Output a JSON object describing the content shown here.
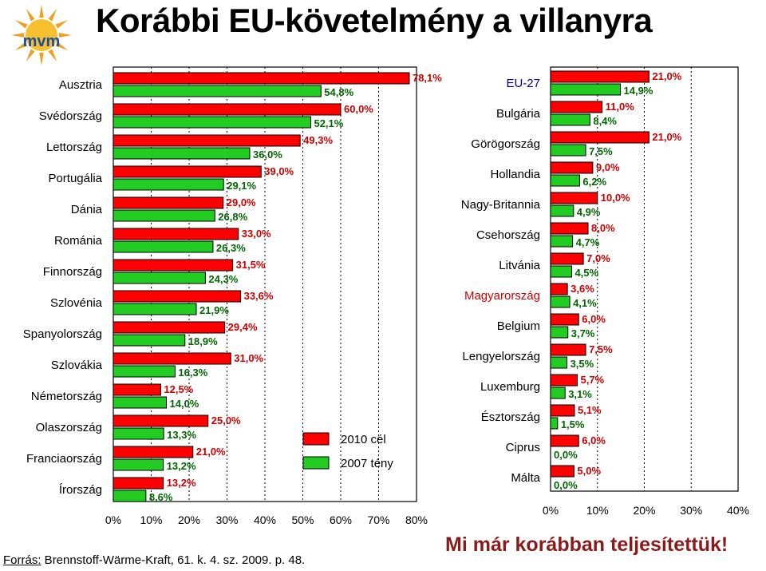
{
  "title": "Korábbi EU-követelmény a villanyra",
  "logo": {
    "icon": "sun-logo-icon",
    "text": "mvm"
  },
  "source": {
    "prefix": "Forrás:",
    "text": " Brennstoff-Wärme-Kraft, 61. k. 4. sz. 2009. p. 48."
  },
  "slogan": "Mi már korábban teljesítettük!",
  "colors": {
    "target": "#ff0000",
    "actual": "#22cc22",
    "target_label": "#cc0000",
    "actual_label": "#006600",
    "highlight": "#cc0000",
    "eu27": "#000080"
  },
  "chart_data": [
    {
      "type": "bar",
      "orientation": "horizontal",
      "categories": [
        "Ausztria",
        "Svédország",
        "Lettország",
        "Portugália",
        "Dánia",
        "Románia",
        "Finnország",
        "Szlovénia",
        "Spanyolország",
        "Szlovákia",
        "Németország",
        "Olaszország",
        "Franciaország",
        "Írország"
      ],
      "series": [
        {
          "name": "2010 cél",
          "values": [
            78.1,
            60.0,
            49.3,
            39.0,
            29.0,
            33.0,
            31.5,
            33.6,
            29.4,
            31.0,
            12.5,
            25.0,
            21.0,
            13.2
          ],
          "labels": [
            "78,1%",
            "60,0%",
            "49,3%",
            "39,0%",
            "29,0%",
            "33,0%",
            "31,5%",
            "33,6%",
            "29,4%",
            "31,0%",
            "12,5%",
            "25,0%",
            "21,0%",
            "13,2%"
          ]
        },
        {
          "name": "2007 tény",
          "values": [
            54.8,
            52.1,
            36.0,
            29.1,
            26.8,
            26.3,
            24.3,
            21.9,
            18.9,
            16.3,
            14.0,
            13.3,
            13.2,
            8.6
          ],
          "labels": [
            "54,8%",
            "52,1%",
            "36,0%",
            "29,1%",
            "26,8%",
            "26,3%",
            "24,3%",
            "21,9%",
            "18,9%",
            "16,3%",
            "14,0%",
            "13,3%",
            "13,2%",
            "8,6%"
          ]
        }
      ],
      "xlim": [
        0,
        80
      ],
      "ticks": [
        "0%",
        "10%",
        "20%",
        "30%",
        "40%",
        "50%",
        "60%",
        "70%",
        "80%"
      ],
      "legend": [
        "2010 cél",
        "2007 tény"
      ]
    },
    {
      "type": "bar",
      "orientation": "horizontal",
      "categories": [
        "EU-27",
        "Bulgária",
        "Görögország",
        "Hollandia",
        "Nagy-Britannia",
        "Csehország",
        "Litvánia",
        "Magyarország",
        "Belgium",
        "Lengyelország",
        "Luxemburg",
        "Észtország",
        "Ciprus",
        "Málta"
      ],
      "series": [
        {
          "name": "2010 cél",
          "values": [
            21.0,
            11.0,
            21.0,
            9.0,
            10.0,
            8.0,
            7.0,
            3.6,
            6.0,
            7.5,
            5.7,
            5.1,
            6.0,
            5.0
          ],
          "labels": [
            "21,0%",
            "11,0%",
            "21,0%",
            "9,0%",
            "10,0%",
            "8,0%",
            "7,0%",
            "3,6%",
            "6,0%",
            "7,5%",
            "5,7%",
            "5,1%",
            "6,0%",
            "5,0%"
          ]
        },
        {
          "name": "2007 tény",
          "values": [
            14.9,
            8.4,
            7.5,
            6.2,
            4.9,
            4.7,
            4.5,
            4.1,
            3.7,
            3.5,
            3.1,
            1.5,
            0.0,
            0.0
          ],
          "labels": [
            "14,9%",
            "8,4%",
            "7,5%",
            "6,2%",
            "4,9%",
            "4,7%",
            "4,5%",
            "4,1%",
            "3,7%",
            "3,5%",
            "3,1%",
            "1,5%",
            "0,0%",
            "0,0%"
          ]
        }
      ],
      "xlim": [
        0,
        40
      ],
      "ticks": [
        "0%",
        "10%",
        "20%",
        "30%",
        "40%"
      ]
    }
  ]
}
